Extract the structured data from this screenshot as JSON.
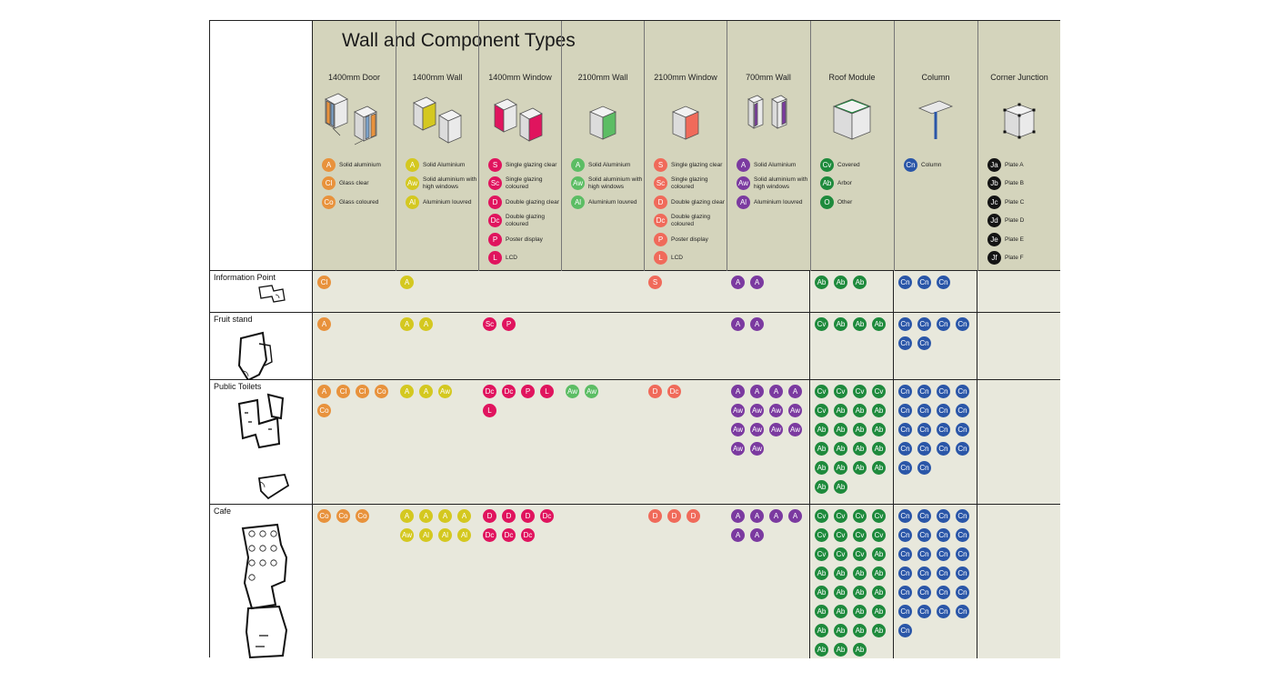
{
  "title": "Wall and Component Types",
  "colors": {
    "A": "#e8923c",
    "Cl": "#e8923c",
    "Co": "#e8923c",
    "wall_A": "#d4c820",
    "Aw": "#d4c820",
    "Al": "#d4c820"
  },
  "columns": [
    {
      "id": "door1400",
      "label": "1400mm Door",
      "icon": "door-module-icon",
      "color": "#e8923c",
      "legend": [
        {
          "code": "A",
          "text": "Solid aluminium"
        },
        {
          "code": "Cl",
          "text": "Glass clear"
        },
        {
          "code": "Co",
          "text": "Glass coloured"
        }
      ]
    },
    {
      "id": "wall1400",
      "label": "1400mm Wall",
      "icon": "wall-module-icon",
      "color": "#d4c820",
      "legend": [
        {
          "code": "A",
          "text": "Solid Aluminium"
        },
        {
          "code": "Aw",
          "text": "Solid aluminium with high windows"
        },
        {
          "code": "Al",
          "text": "Aluminium louvred"
        }
      ]
    },
    {
      "id": "window1400",
      "label": "1400mm Window",
      "icon": "window-module-icon",
      "color": "#e0145e",
      "legend": [
        {
          "code": "S",
          "text": "Single glazing clear"
        },
        {
          "code": "Sc",
          "text": "Single glazing coloured"
        },
        {
          "code": "D",
          "text": "Double glazing clear"
        },
        {
          "code": "Dc",
          "text": "Double glazing coloured"
        },
        {
          "code": "P",
          "text": "Poster display"
        },
        {
          "code": "L",
          "text": "LCD"
        }
      ]
    },
    {
      "id": "wall2100",
      "label": "2100mm Wall",
      "icon": "wall-module-icon",
      "color": "#5cbd64",
      "legend": [
        {
          "code": "A",
          "text": "Solid Aluminium"
        },
        {
          "code": "Aw",
          "text": "Solid aluminium with high windows"
        },
        {
          "code": "Al",
          "text": "Aluminium louvred"
        }
      ]
    },
    {
      "id": "window2100",
      "label": "2100mm Window",
      "icon": "window-module-icon",
      "color": "#f06a5a",
      "legend": [
        {
          "code": "S",
          "text": "Single glazing clear"
        },
        {
          "code": "Sc",
          "text": "Single glazing coloured"
        },
        {
          "code": "D",
          "text": "Double glazing clear"
        },
        {
          "code": "Dc",
          "text": "Double glazing coloured"
        },
        {
          "code": "P",
          "text": "Poster display"
        },
        {
          "code": "L",
          "text": "LCD"
        }
      ]
    },
    {
      "id": "wall700",
      "label": "700mm Wall",
      "icon": "wall-module-icon",
      "color": "#7b3aa0",
      "legend": [
        {
          "code": "A",
          "text": "Solid Aluminium"
        },
        {
          "code": "Aw",
          "text": "Solid aluminium with high windows"
        },
        {
          "code": "Al",
          "text": "Aluminium louvred"
        }
      ]
    },
    {
      "id": "roof",
      "label": "Roof Module",
      "icon": "roof-module-icon",
      "color": "#1e8a3c",
      "legend": [
        {
          "code": "Cv",
          "text": "Covered"
        },
        {
          "code": "Ab",
          "text": "Arbor"
        },
        {
          "code": "O",
          "text": "Other"
        }
      ]
    },
    {
      "id": "column",
      "label": "Column",
      "icon": "column-icon",
      "color": "#2a56a8",
      "legend": [
        {
          "code": "Cn",
          "text": "Column"
        }
      ]
    },
    {
      "id": "corner",
      "label": "Corner Junction",
      "icon": "corner-junction-icon",
      "color": "#141414",
      "legend": [
        {
          "code": "Ja",
          "text": "Plate A"
        },
        {
          "code": "Jb",
          "text": "Plate B"
        },
        {
          "code": "Jc",
          "text": "Plate C"
        },
        {
          "code": "Jd",
          "text": "Plate D"
        },
        {
          "code": "Je",
          "text": "Plate E"
        },
        {
          "code": "Jf",
          "text": "Plate F"
        }
      ]
    }
  ],
  "rows": [
    {
      "name": "Information Point",
      "plan": "information-point-plan-icon",
      "cells": [
        [
          "Cl"
        ],
        [
          "A"
        ],
        [],
        [],
        [
          "S"
        ],
        [
          "A",
          "A"
        ],
        [
          "Ab",
          "Ab",
          "Ab"
        ],
        [
          "Cn",
          "Cn",
          "Cn"
        ],
        []
      ]
    },
    {
      "name": "Fruit stand",
      "plan": "fruit-stand-plan-icon",
      "cells": [
        [
          "A"
        ],
        [
          "A",
          "A"
        ],
        [
          "Sc",
          "P"
        ],
        [],
        [],
        [
          "A",
          "A"
        ],
        [
          "Cv",
          "Ab",
          "Ab",
          "Ab"
        ],
        [
          "Cn",
          "Cn",
          "Cn",
          "Cn",
          "Cn",
          "Cn"
        ],
        []
      ]
    },
    {
      "name": "Public Toilets",
      "plan": "public-toilets-plan-icon",
      "cells": [
        [
          "A",
          "Cl",
          "Cl",
          "Co",
          "Co"
        ],
        [
          "A",
          "A",
          "Aw"
        ],
        [
          "Dc",
          "Dc",
          "P",
          "L",
          "L"
        ],
        [
          "Aw",
          "Aw"
        ],
        [
          "D",
          "Dc"
        ],
        [
          "A",
          "A",
          "A",
          "A",
          "Aw",
          "Aw",
          "Aw",
          "Aw",
          "Aw",
          "Aw",
          "Aw",
          "Aw",
          "Aw",
          "Aw"
        ],
        [
          "Cv",
          "Cv",
          "Cv",
          "Cv",
          "Cv",
          "Ab",
          "Ab",
          "Ab",
          "Ab",
          "Ab",
          "Ab",
          "Ab",
          "Ab",
          "Ab",
          "Ab",
          "Ab",
          "Ab",
          "Ab",
          "Ab",
          "Ab",
          "Ab",
          "Ab"
        ],
        [
          "Cn",
          "Cn",
          "Cn",
          "Cn",
          "Cn",
          "Cn",
          "Cn",
          "Cn",
          "Cn",
          "Cn",
          "Cn",
          "Cn",
          "Cn",
          "Cn",
          "Cn",
          "Cn",
          "Cn",
          "Cn"
        ],
        []
      ]
    },
    {
      "name": "Cafe",
      "plan": "cafe-plan-icon",
      "cells": [
        [
          "Co",
          "Co",
          "Co"
        ],
        [
          "A",
          "A",
          "A",
          "A",
          "Aw",
          "Al",
          "Al",
          "Al"
        ],
        [
          "D",
          "D",
          "D",
          "Dc",
          "Dc",
          "Dc",
          "Dc"
        ],
        [],
        [
          "D",
          "D",
          "D"
        ],
        [
          "A",
          "A",
          "A",
          "A",
          "A",
          "A"
        ],
        [
          "Cv",
          "Cv",
          "Cv",
          "Cv",
          "Cv",
          "Cv",
          "Cv",
          "Cv",
          "Cv",
          "Cv",
          "Cv",
          "Ab",
          "Ab",
          "Ab",
          "Ab",
          "Ab",
          "Ab",
          "Ab",
          "Ab",
          "Ab",
          "Ab",
          "Ab",
          "Ab",
          "Ab",
          "Ab",
          "Ab",
          "Ab",
          "Ab",
          "Ab",
          "Ab",
          "Ab"
        ],
        [
          "Cn",
          "Cn",
          "Cn",
          "Cn",
          "Cn",
          "Cn",
          "Cn",
          "Cn",
          "Cn",
          "Cn",
          "Cn",
          "Cn",
          "Cn",
          "Cn",
          "Cn",
          "Cn",
          "Cn",
          "Cn",
          "Cn",
          "Cn",
          "Cn",
          "Cn",
          "Cn",
          "Cn",
          "Cn"
        ],
        []
      ]
    }
  ]
}
